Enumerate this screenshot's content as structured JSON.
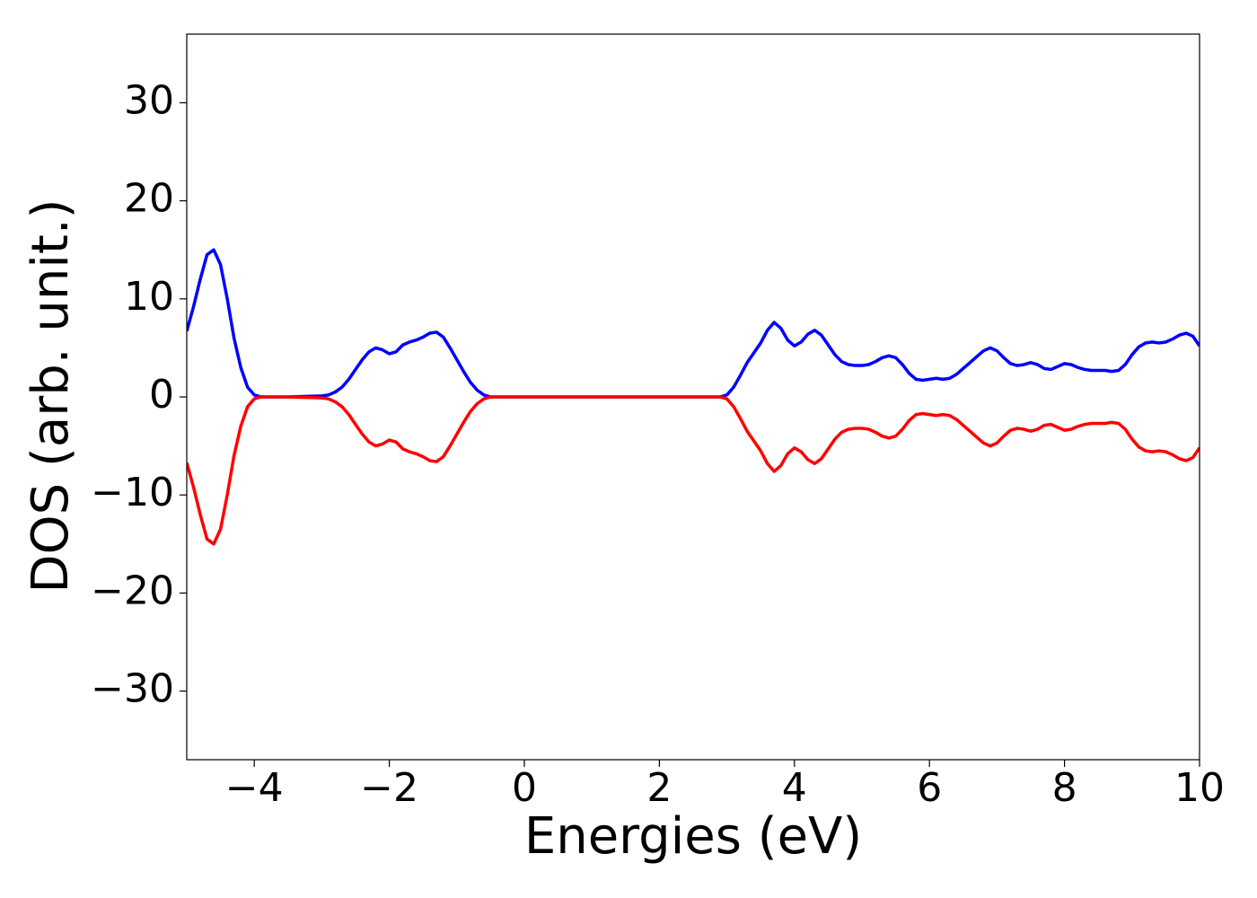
{
  "chart_data": {
    "type": "line",
    "xlabel": "Energies (eV)",
    "ylabel": "DOS (arb. unit.)",
    "x": [
      -5.0,
      -4.9,
      -4.8,
      -4.7,
      -4.6,
      -4.5,
      -4.4,
      -4.3,
      -4.2,
      -4.1,
      -4.0,
      -3.9,
      -3.5,
      -3.0,
      -2.9,
      -2.8,
      -2.7,
      -2.6,
      -2.5,
      -2.4,
      -2.3,
      -2.2,
      -2.1,
      -2.0,
      -1.9,
      -1.8,
      -1.7,
      -1.6,
      -1.5,
      -1.4,
      -1.3,
      -1.2,
      -1.1,
      -1.0,
      -0.9,
      -0.8,
      -0.7,
      -0.6,
      -0.5,
      0,
      0.5,
      1,
      1.5,
      2,
      2.5,
      2.9,
      3.0,
      3.1,
      3.2,
      3.3,
      3.4,
      3.5,
      3.6,
      3.7,
      3.8,
      3.9,
      4.0,
      4.1,
      4.2,
      4.3,
      4.4,
      4.5,
      4.6,
      4.7,
      4.8,
      4.9,
      5.0,
      5.1,
      5.2,
      5.3,
      5.4,
      5.5,
      5.6,
      5.7,
      5.8,
      5.9,
      6.0,
      6.1,
      6.2,
      6.3,
      6.4,
      6.5,
      6.6,
      6.7,
      6.8,
      6.9,
      7.0,
      7.1,
      7.2,
      7.3,
      7.4,
      7.5,
      7.6,
      7.7,
      7.8,
      7.9,
      8.0,
      8.1,
      8.2,
      8.3,
      8.4,
      8.5,
      8.6,
      8.7,
      8.8,
      8.9,
      9.0,
      9.1,
      9.2,
      9.3,
      9.4,
      9.5,
      9.6,
      9.7,
      9.8,
      9.9,
      10.0
    ],
    "series": [
      {
        "color": "#0000ff",
        "values": [
          6.7,
          9.2,
          12,
          14.5,
          15,
          13.5,
          10,
          6,
          3,
          1,
          0.2,
          0,
          0,
          0.1,
          0.2,
          0.5,
          1,
          1.8,
          2.8,
          3.8,
          4.6,
          5,
          4.8,
          4.4,
          4.6,
          5.3,
          5.6,
          5.8,
          6.1,
          6.5,
          6.6,
          6.1,
          5,
          3.8,
          2.6,
          1.5,
          0.7,
          0.2,
          0,
          0,
          0,
          0,
          0,
          0,
          0,
          0,
          0.2,
          1,
          2.2,
          3.5,
          4.5,
          5.5,
          6.8,
          7.6,
          7,
          5.8,
          5.2,
          5.6,
          6.4,
          6.8,
          6.3,
          5.3,
          4.3,
          3.6,
          3.3,
          3.2,
          3.2,
          3.3,
          3.6,
          4,
          4.2,
          4,
          3.3,
          2.4,
          1.8,
          1.7,
          1.8,
          1.9,
          1.8,
          1.9,
          2.3,
          2.9,
          3.5,
          4.1,
          4.7,
          5,
          4.7,
          4,
          3.4,
          3.2,
          3.3,
          3.5,
          3.3,
          2.9,
          2.8,
          3.1,
          3.4,
          3.3,
          3,
          2.8,
          2.7,
          2.7,
          2.7,
          2.6,
          2.7,
          3.3,
          4.3,
          5.1,
          5.5,
          5.6,
          5.5,
          5.6,
          5.9,
          6.3,
          6.5,
          6.2,
          5.2
        ]
      },
      {
        "color": "#ff0000",
        "values": [
          -6.7,
          -9.2,
          -12,
          -14.5,
          -15,
          -13.5,
          -10,
          -6,
          -3,
          -1,
          -0.2,
          0,
          0,
          -0.1,
          -0.2,
          -0.5,
          -1,
          -1.8,
          -2.8,
          -3.8,
          -4.6,
          -5,
          -4.8,
          -4.4,
          -4.6,
          -5.3,
          -5.6,
          -5.8,
          -6.1,
          -6.5,
          -6.6,
          -6.1,
          -5,
          -3.8,
          -2.6,
          -1.5,
          -0.7,
          -0.2,
          0,
          0,
          0,
          0,
          0,
          0,
          0,
          0,
          -0.2,
          -1,
          -2.2,
          -3.5,
          -4.5,
          -5.5,
          -6.8,
          -7.6,
          -7,
          -5.8,
          -5.2,
          -5.6,
          -6.4,
          -6.8,
          -6.3,
          -5.3,
          -4.3,
          -3.6,
          -3.3,
          -3.2,
          -3.2,
          -3.3,
          -3.6,
          -4,
          -4.2,
          -4,
          -3.3,
          -2.4,
          -1.8,
          -1.7,
          -1.8,
          -1.9,
          -1.8,
          -1.9,
          -2.3,
          -2.9,
          -3.5,
          -4.1,
          -4.7,
          -5,
          -4.7,
          -4,
          -3.4,
          -3.2,
          -3.3,
          -3.5,
          -3.3,
          -2.9,
          -2.8,
          -3.1,
          -3.4,
          -3.3,
          -3,
          -2.8,
          -2.7,
          -2.7,
          -2.7,
          -2.6,
          -2.7,
          -3.3,
          -4.3,
          -5.1,
          -5.5,
          -5.6,
          -5.5,
          -5.6,
          -5.9,
          -6.3,
          -6.5,
          -6.2,
          -5.2
        ]
      }
    ],
    "xlim": [
      -5,
      10
    ],
    "xticks": [
      {
        "value": -4,
        "label": "−4"
      },
      {
        "value": -2,
        "label": "−2"
      },
      0,
      2,
      4,
      6,
      8,
      10
    ],
    "ylim": [
      -37,
      37
    ],
    "yticks": [
      {
        "value": -30,
        "label": "−30"
      },
      {
        "value": -20,
        "label": "−20"
      },
      {
        "value": -10,
        "label": "−10"
      },
      0,
      10,
      20,
      30
    ],
    "grid": false
  }
}
